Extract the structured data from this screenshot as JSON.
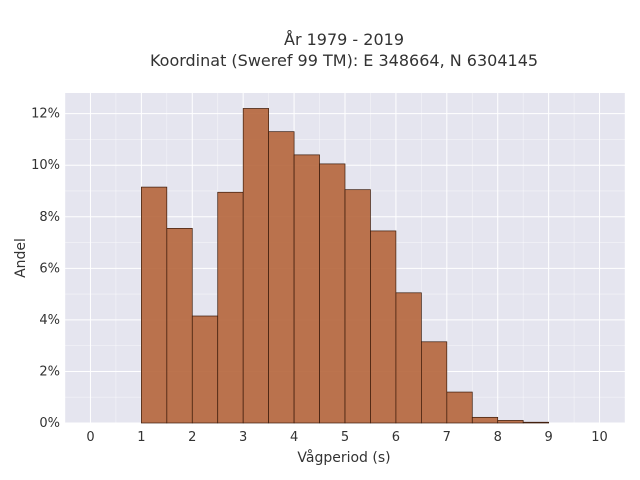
{
  "chart_data": {
    "type": "bar",
    "title": [
      "År 1979 - 2019",
      "Koordinat (Sweref 99 TM): E 348664, N 6304145"
    ],
    "xlabel": "Vågperiod (s)",
    "ylabel": "Andel",
    "xlim": [
      -0.5,
      10.5
    ],
    "ylim": [
      0,
      12.8
    ],
    "x_ticks": [
      0,
      1,
      2,
      3,
      4,
      5,
      6,
      7,
      8,
      9,
      10
    ],
    "y_ticks": [
      0,
      2,
      4,
      6,
      8,
      10,
      12
    ],
    "y_tick_suffix": "%",
    "bin_width": 0.5,
    "bins": [
      {
        "start": 1.0,
        "value": 9.15
      },
      {
        "start": 1.5,
        "value": 7.55
      },
      {
        "start": 2.0,
        "value": 4.15
      },
      {
        "start": 2.5,
        "value": 8.95
      },
      {
        "start": 3.0,
        "value": 12.2
      },
      {
        "start": 3.5,
        "value": 11.3
      },
      {
        "start": 4.0,
        "value": 10.4
      },
      {
        "start": 4.5,
        "value": 10.05
      },
      {
        "start": 5.0,
        "value": 9.05
      },
      {
        "start": 5.5,
        "value": 7.45
      },
      {
        "start": 6.0,
        "value": 5.05
      },
      {
        "start": 6.5,
        "value": 3.15
      },
      {
        "start": 7.0,
        "value": 1.2
      },
      {
        "start": 7.5,
        "value": 0.22
      },
      {
        "start": 8.0,
        "value": 0.1
      },
      {
        "start": 8.5,
        "value": 0.03
      }
    ],
    "grid": true,
    "colors": {
      "bar_fill": "#b5653b",
      "bar_stroke": "#3a1a0a",
      "plot_bg": "#e5e5ef",
      "grid": "#ffffff"
    }
  }
}
